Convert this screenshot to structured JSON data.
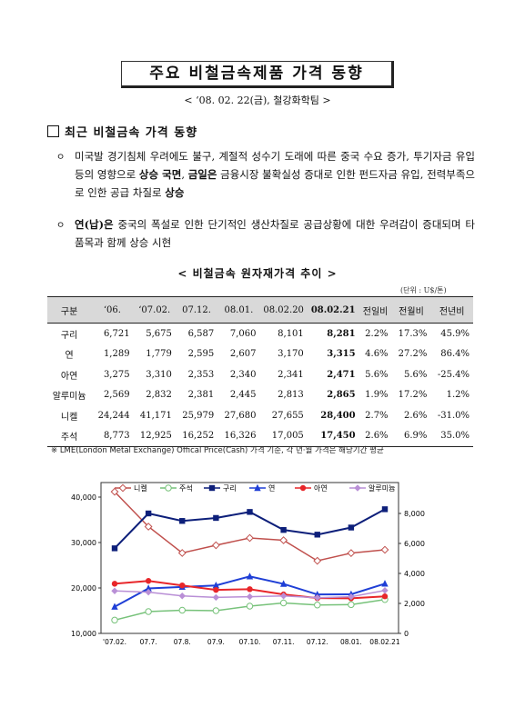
{
  "header": {
    "title": "주요 비철금속제품 가격 동향",
    "subtitle": "< ‘08. 02. 22(금), 철강화학팀 >"
  },
  "section": {
    "mark": "□",
    "title": "최근 비철금속 가격 동향"
  },
  "paragraphs": [
    {
      "bullet": "ㅇ",
      "parts": [
        {
          "text": "미국발 경기침체 우려에도 불구, 계절적 성수기 도래에 따른 중국 수요 증가, 투기자금 유입 등의 영향으로 ",
          "bold": false
        },
        {
          "text": "상승 국면",
          "bold": true
        },
        {
          "text": ", ",
          "bold": false
        },
        {
          "text": "금일은",
          "bold": true
        },
        {
          "text": " 금융시장 불확실성 증대로 인한 펀드자금 유입, 전력부족으로 인한 공급 차질로 ",
          "bold": false
        },
        {
          "text": "상승",
          "bold": true
        }
      ]
    },
    {
      "bullet": "ㅇ",
      "parts": [
        {
          "text": "연(납)은",
          "bold": true
        },
        {
          "text": " 중국의 폭설로 인한 단기적인 생산차질로 공급상황에 대한 우려감이 증대되며 타 품목과 함께 상승 시현",
          "bold": false
        }
      ]
    }
  ],
  "table": {
    "title": "< 비철금속 원자재가격 추이 >",
    "unit": "(단위 : U$/톤)",
    "headers": [
      "구분",
      "‘06.",
      "‘07.02.",
      "07.12.",
      "08.01.",
      "08.02.20",
      "08.02.21",
      "전일비",
      "전월비",
      "전년비"
    ],
    "rows": [
      [
        "구리",
        "6,721",
        "5,675",
        "6,587",
        "7,060",
        "8,101",
        "8,281",
        "2.2%",
        "17.3%",
        "45.9%"
      ],
      [
        "연",
        "1,289",
        "1,779",
        "2,595",
        "2,607",
        "3,170",
        "3,315",
        "4.6%",
        "27.2%",
        "86.4%"
      ],
      [
        "아연",
        "3,275",
        "3,310",
        "2,353",
        "2,340",
        "2,341",
        "2,471",
        "5.6%",
        "5.6%",
        "-25.4%"
      ],
      [
        "알루미늄",
        "2,569",
        "2,832",
        "2,381",
        "2,445",
        "2,813",
        "2,865",
        "1.9%",
        "17.2%",
        "1.2%"
      ],
      [
        "니켈",
        "24,244",
        "41,171",
        "25,979",
        "27,680",
        "27,655",
        "28,400",
        "2.7%",
        "2.6%",
        "-31.0%"
      ],
      [
        "주석",
        "8,773",
        "12,925",
        "16,252",
        "16,326",
        "17,005",
        "17,450",
        "2.6%",
        "6.9%",
        "35.0%"
      ]
    ],
    "footnote": "※ LME(London Metal Exchange) Offical Price(Cash) 가격 기준, 각 년·월 가격은 해당기간 평균"
  },
  "chart_data": {
    "type": "line",
    "categories": [
      "'07.02.",
      "07.7.",
      "07.8.",
      "07.9.",
      "07.10.",
      "07.11.",
      "07.12.",
      "08.01.",
      "08.02.21"
    ],
    "left_axis": {
      "ylim": [
        10000,
        40000
      ],
      "ticks": [
        "10,000",
        "20,000",
        "30,000",
        "40,000"
      ],
      "tick_values": [
        10000,
        20000,
        30000,
        40000
      ]
    },
    "right_axis": {
      "ylim": [
        0,
        8000
      ],
      "ticks": [
        "0",
        "2,000",
        "4,000",
        "6,000",
        "8,000"
      ],
      "tick_values": [
        0,
        2000,
        4000,
        6000,
        8000
      ]
    },
    "legend_placement": "top",
    "series": [
      {
        "name": "니켈",
        "axis": "left",
        "color": "#c0504d",
        "marker": "diamond-open",
        "values": [
          41171,
          33500,
          27700,
          29400,
          31000,
          30500,
          25979,
          27680,
          28400
        ]
      },
      {
        "name": "주석",
        "axis": "left",
        "color": "#77c27a",
        "marker": "circle-open",
        "values": [
          12925,
          14800,
          15100,
          15000,
          16000,
          16700,
          16252,
          16326,
          17450
        ]
      },
      {
        "name": "구리",
        "axis": "right",
        "color": "#0d1f7a",
        "marker": "square",
        "values": [
          5675,
          8000,
          7500,
          7700,
          8100,
          6900,
          6587,
          7060,
          8281
        ]
      },
      {
        "name": "연",
        "axis": "right",
        "color": "#1f3fd6",
        "marker": "triangle",
        "values": [
          1779,
          3000,
          3100,
          3200,
          3800,
          3300,
          2595,
          2607,
          3315
        ]
      },
      {
        "name": "아연",
        "axis": "right",
        "color": "#e8262a",
        "marker": "circle",
        "values": [
          3310,
          3500,
          3200,
          2900,
          2950,
          2600,
          2353,
          2340,
          2471
        ]
      },
      {
        "name": "알루미늄",
        "axis": "right",
        "color": "#b98fd6",
        "marker": "diamond",
        "values": [
          2832,
          2750,
          2500,
          2400,
          2450,
          2500,
          2381,
          2445,
          2865
        ]
      }
    ]
  }
}
